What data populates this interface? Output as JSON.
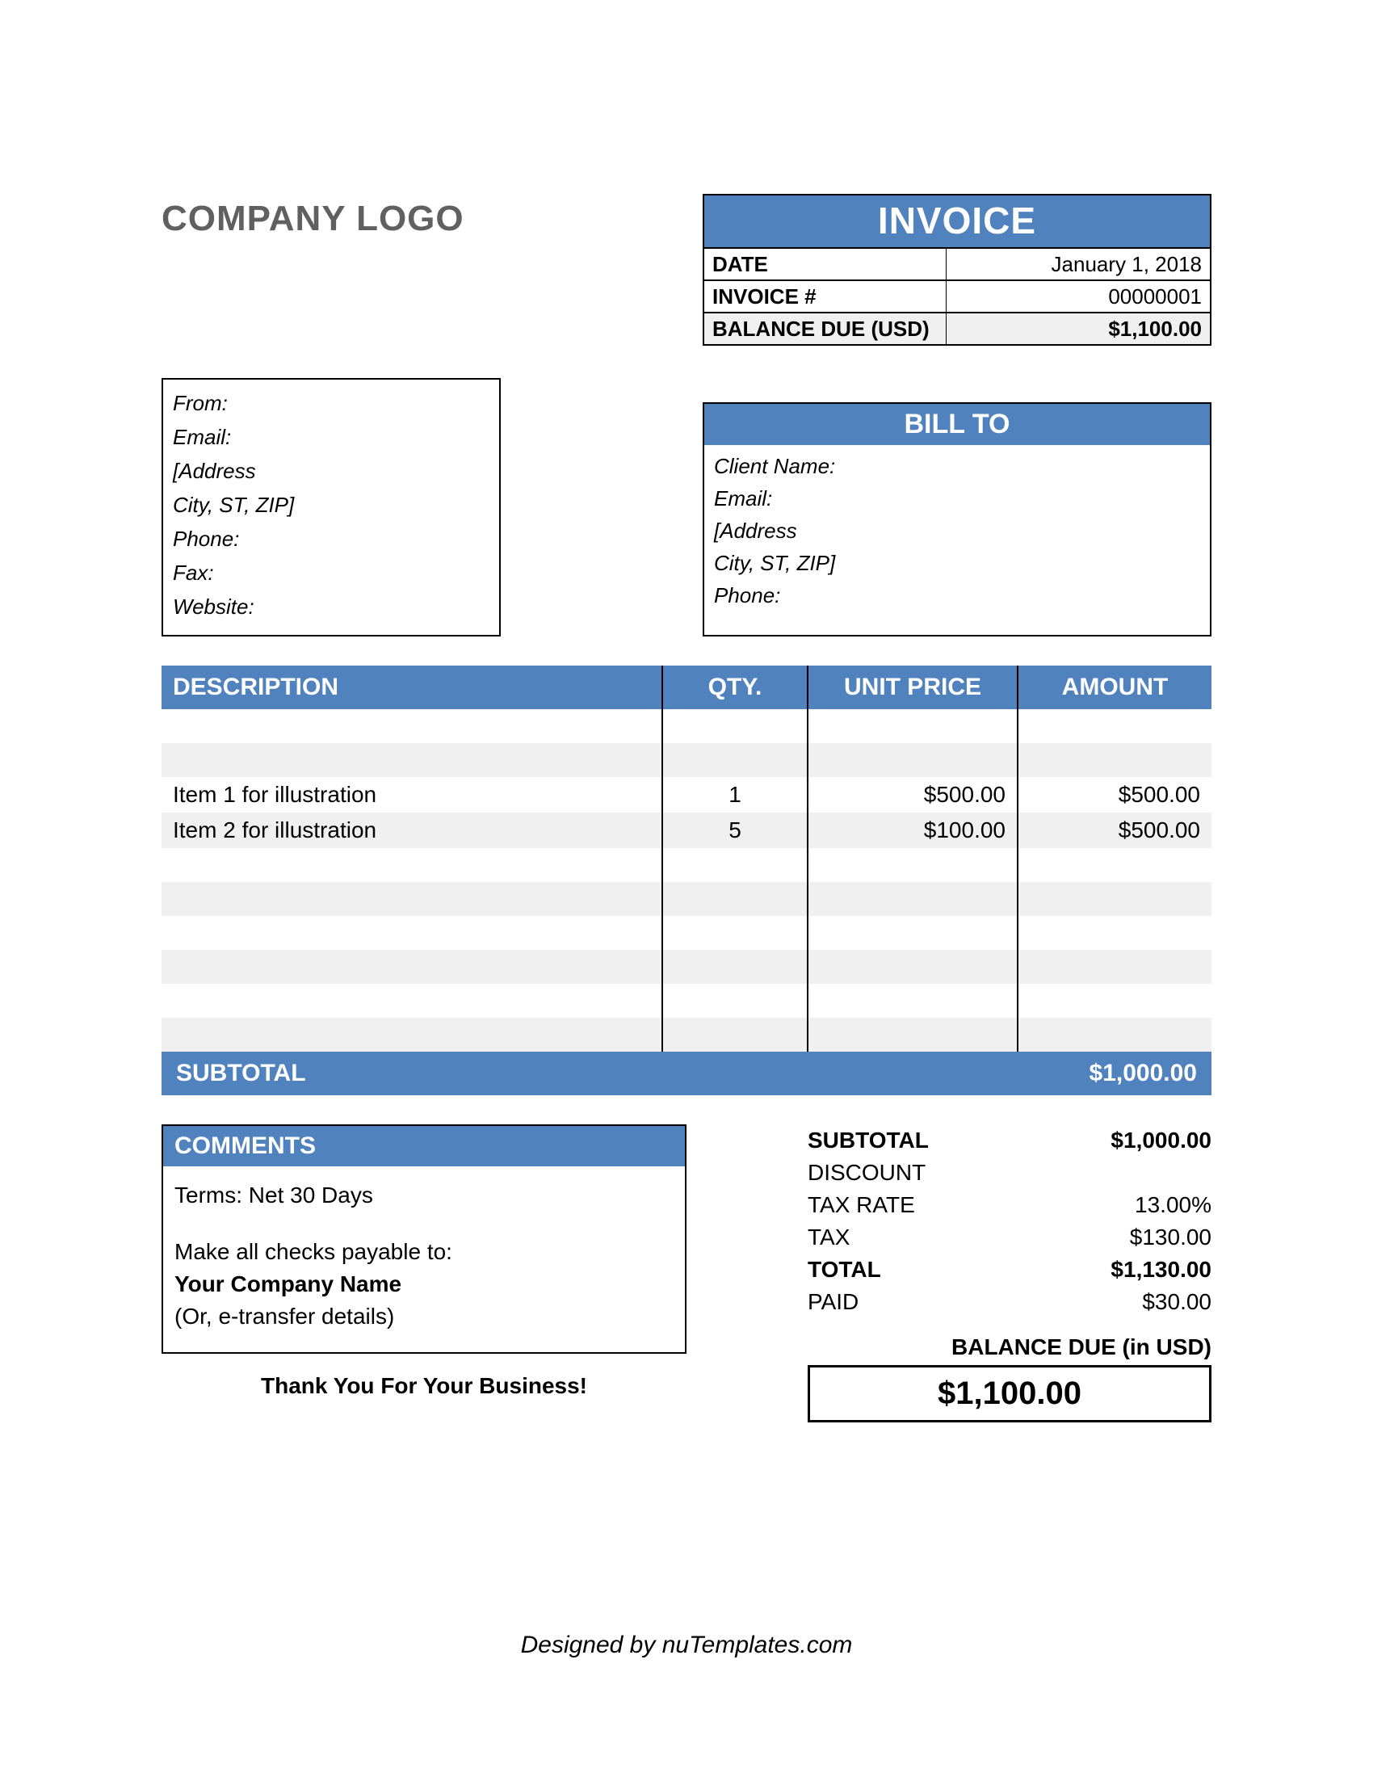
{
  "colors": {
    "primary": "#5082bd",
    "stripe": "#f0f0f0",
    "text": "#000000",
    "logo_text": "#606060",
    "background": "#ffffff"
  },
  "logo_text": "COMPANY LOGO",
  "invoice": {
    "title": "INVOICE",
    "date_label": "DATE",
    "date_value": "January 1, 2018",
    "number_label": "INVOICE #",
    "number_value": "00000001",
    "balance_label": "BALANCE DUE (USD)",
    "balance_value": "$1,100.00"
  },
  "from": {
    "l0": "From:",
    "l1": "Email:",
    "l2": "[Address",
    "l3": "City, ST, ZIP]",
    "l4": "Phone:",
    "l5": "Fax:",
    "l6": "Website:"
  },
  "billto": {
    "title": "BILL TO",
    "l0": "Client Name:",
    "l1": "Email:",
    "l2": "[Address",
    "l3": "City, ST, ZIP]",
    "l4": "Phone:"
  },
  "table": {
    "headers": {
      "desc": "DESCRIPTION",
      "qty": "QTY.",
      "unit": "UNIT PRICE",
      "amount": "AMOUNT"
    },
    "rows": [
      {
        "desc": "",
        "qty": "",
        "unit": "",
        "amount": ""
      },
      {
        "desc": "",
        "qty": "",
        "unit": "",
        "amount": ""
      },
      {
        "desc": "Item 1 for illustration",
        "qty": "1",
        "unit": "$500.00",
        "amount": "$500.00"
      },
      {
        "desc": "Item 2 for illustration",
        "qty": "5",
        "unit": "$100.00",
        "amount": "$500.00"
      },
      {
        "desc": "",
        "qty": "",
        "unit": "",
        "amount": ""
      },
      {
        "desc": "",
        "qty": "",
        "unit": "",
        "amount": ""
      },
      {
        "desc": "",
        "qty": "",
        "unit": "",
        "amount": ""
      },
      {
        "desc": "",
        "qty": "",
        "unit": "",
        "amount": ""
      },
      {
        "desc": "",
        "qty": "",
        "unit": "",
        "amount": ""
      },
      {
        "desc": "",
        "qty": "",
        "unit": "",
        "amount": ""
      }
    ],
    "subtotal_label": "SUBTOTAL",
    "subtotal_value": "$1,000.00"
  },
  "comments": {
    "title": "COMMENTS",
    "l0": "Terms: Net 30 Days",
    "l1": "Make all checks payable to:",
    "l2": "Your Company Name",
    "l3": "(Or, e-transfer details)"
  },
  "totals": {
    "subtotal_label": "SUBTOTAL",
    "subtotal_value": "$1,000.00",
    "discount_label": "DISCOUNT",
    "discount_value": "",
    "taxrate_label": "TAX RATE",
    "taxrate_value": "13.00%",
    "tax_label": "TAX",
    "tax_value": "$130.00",
    "total_label": "TOTAL",
    "total_value": "$1,130.00",
    "paid_label": "PAID",
    "paid_value": "$30.00",
    "balance_due_label": "BALANCE DUE (in USD)",
    "balance_due_value": "$1,100.00"
  },
  "thankyou": "Thank You For Your Business!",
  "footer": "Designed by nuTemplates.com"
}
